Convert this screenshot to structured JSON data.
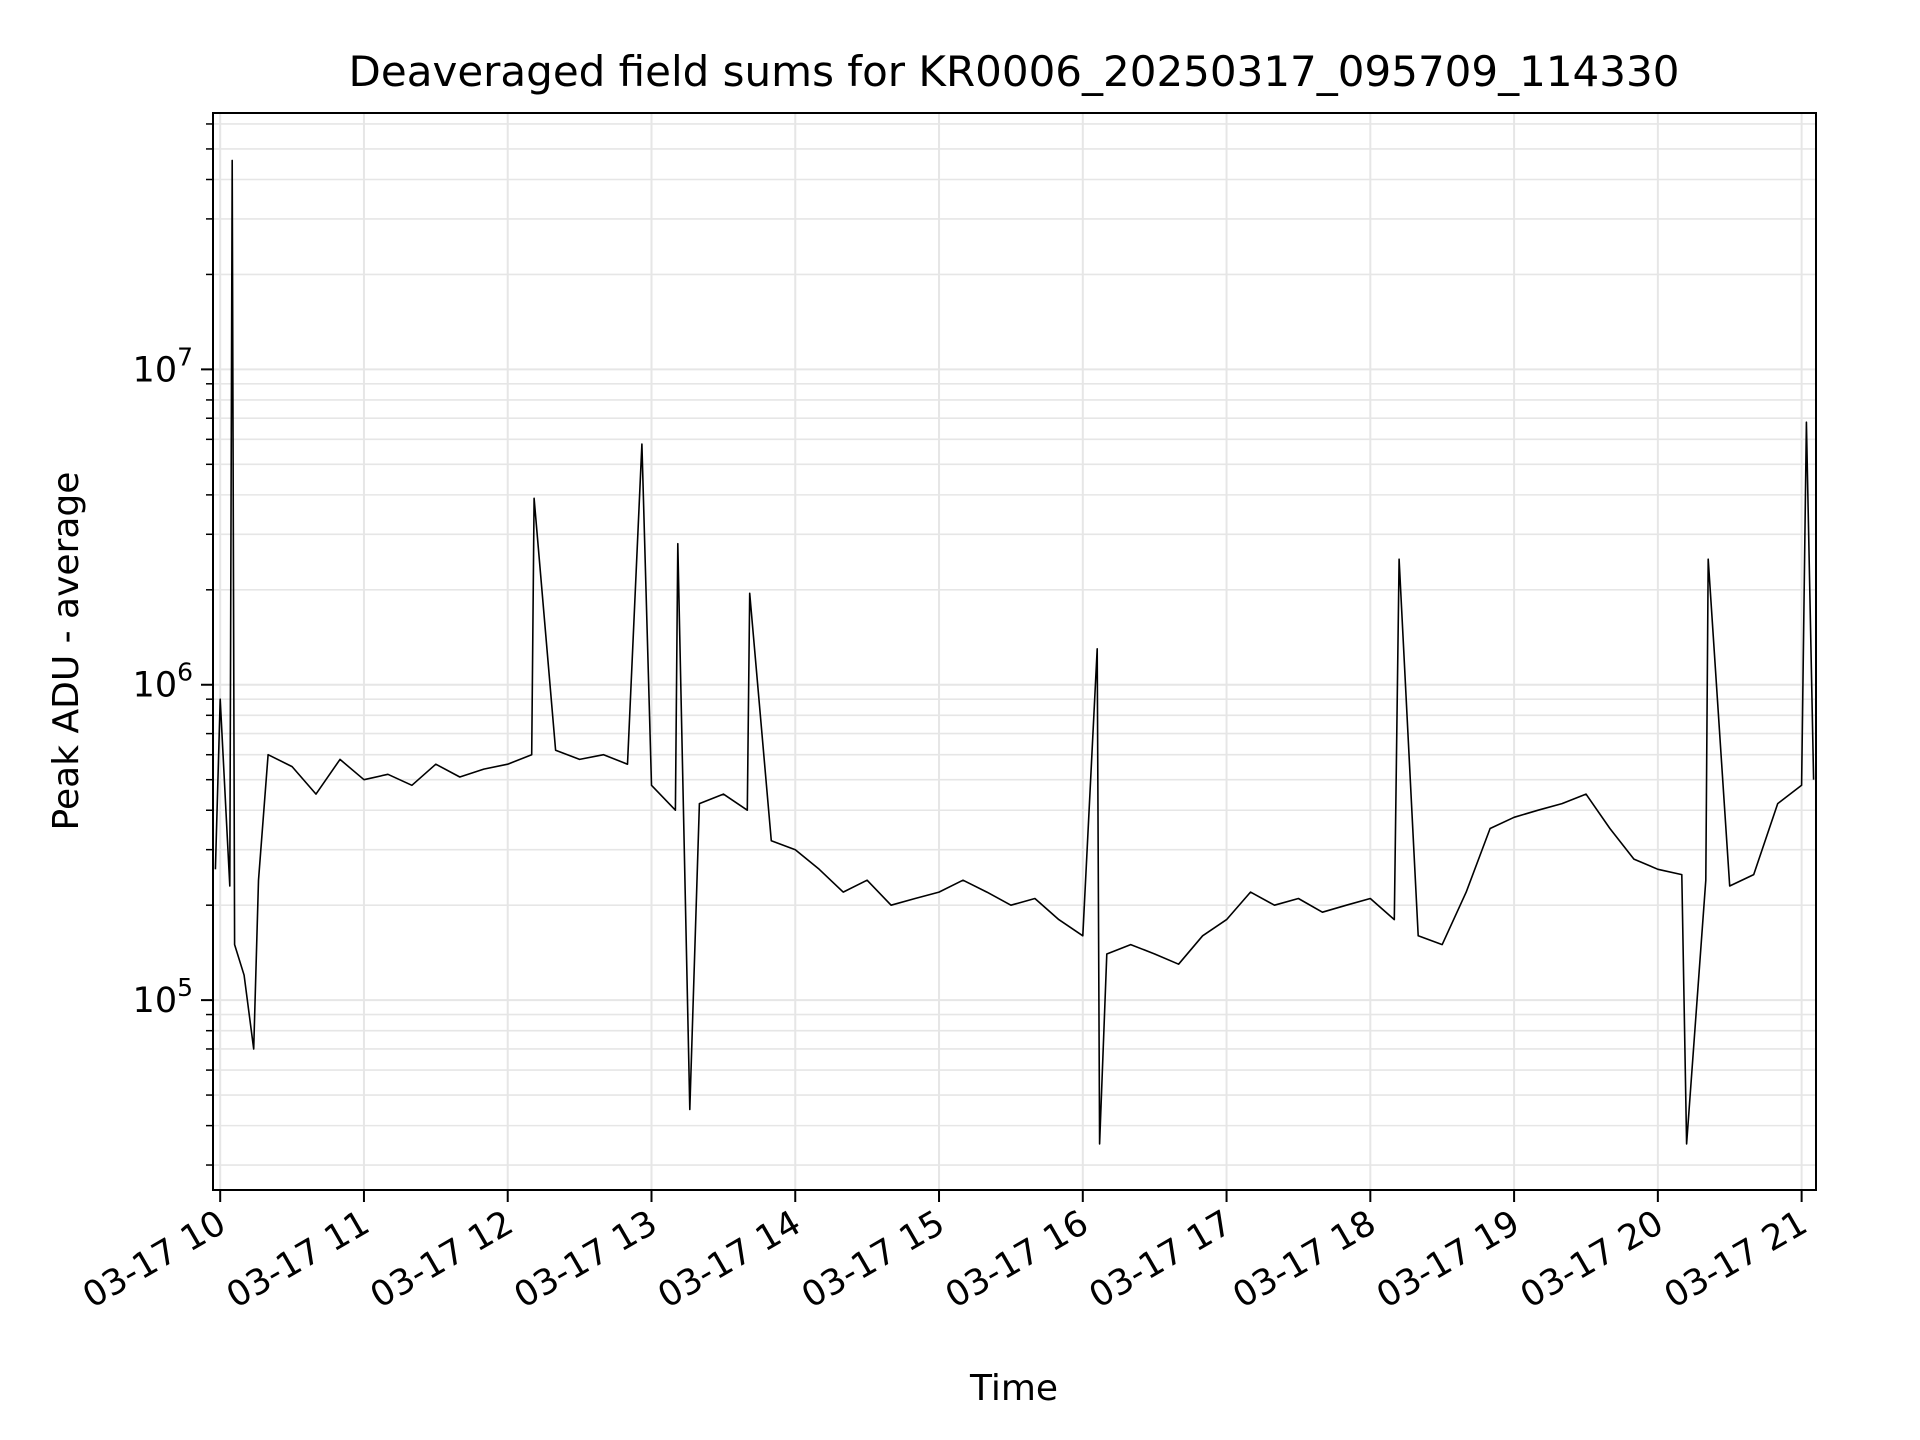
{
  "chart_data": {
    "type": "line",
    "title": "Deaveraged field sums for KR0006_20250317_095709_114330",
    "xlabel": "Time",
    "ylabel": "Peak ADU - average",
    "yscale": "log",
    "ylim": [
      25000,
      65000000
    ],
    "xlim": [
      "2025-03-17 09:57",
      "2025-03-17 21:06"
    ],
    "grid": true,
    "x_ticks": [
      "03-17 10",
      "03-17 11",
      "03-17 12",
      "03-17 13",
      "03-17 14",
      "03-17 15",
      "03-17 16",
      "03-17 17",
      "03-17 18",
      "03-17 19",
      "03-17 20",
      "03-17 21"
    ],
    "y_ticks": [
      {
        "base": "10",
        "exp": "5",
        "value": 100000
      },
      {
        "base": "10",
        "exp": "6",
        "value": 1000000
      },
      {
        "base": "10",
        "exp": "7",
        "value": 10000000
      }
    ],
    "series": [
      {
        "color": "#000000",
        "points": [
          [
            "2025-03-17 09:58",
            260000
          ],
          [
            "2025-03-17 10:00",
            900000
          ],
          [
            "2025-03-17 10:04",
            230000
          ],
          [
            "2025-03-17 10:05",
            46000000
          ],
          [
            "2025-03-17 10:06",
            150000
          ],
          [
            "2025-03-17 10:10",
            120000
          ],
          [
            "2025-03-17 10:14",
            70000
          ],
          [
            "2025-03-17 10:16",
            240000
          ],
          [
            "2025-03-17 10:20",
            600000
          ],
          [
            "2025-03-17 10:30",
            550000
          ],
          [
            "2025-03-17 10:40",
            450000
          ],
          [
            "2025-03-17 10:50",
            580000
          ],
          [
            "2025-03-17 11:00",
            500000
          ],
          [
            "2025-03-17 11:10",
            520000
          ],
          [
            "2025-03-17 11:20",
            480000
          ],
          [
            "2025-03-17 11:30",
            560000
          ],
          [
            "2025-03-17 11:40",
            510000
          ],
          [
            "2025-03-17 11:50",
            540000
          ],
          [
            "2025-03-17 12:00",
            560000
          ],
          [
            "2025-03-17 12:10",
            600000
          ],
          [
            "2025-03-17 12:11",
            3900000
          ],
          [
            "2025-03-17 12:20",
            620000
          ],
          [
            "2025-03-17 12:30",
            580000
          ],
          [
            "2025-03-17 12:40",
            600000
          ],
          [
            "2025-03-17 12:50",
            560000
          ],
          [
            "2025-03-17 12:56",
            5800000
          ],
          [
            "2025-03-17 13:00",
            480000
          ],
          [
            "2025-03-17 13:10",
            400000
          ],
          [
            "2025-03-17 13:11",
            2800000
          ],
          [
            "2025-03-17 13:16",
            45000
          ],
          [
            "2025-03-17 13:20",
            420000
          ],
          [
            "2025-03-17 13:30",
            450000
          ],
          [
            "2025-03-17 13:40",
            400000
          ],
          [
            "2025-03-17 13:41",
            1950000
          ],
          [
            "2025-03-17 13:50",
            320000
          ],
          [
            "2025-03-17 14:00",
            300000
          ],
          [
            "2025-03-17 14:10",
            260000
          ],
          [
            "2025-03-17 14:20",
            220000
          ],
          [
            "2025-03-17 14:30",
            240000
          ],
          [
            "2025-03-17 14:40",
            200000
          ],
          [
            "2025-03-17 14:50",
            210000
          ],
          [
            "2025-03-17 15:00",
            220000
          ],
          [
            "2025-03-17 15:10",
            240000
          ],
          [
            "2025-03-17 15:20",
            220000
          ],
          [
            "2025-03-17 15:30",
            200000
          ],
          [
            "2025-03-17 15:40",
            210000
          ],
          [
            "2025-03-17 15:50",
            180000
          ],
          [
            "2025-03-17 16:00",
            160000
          ],
          [
            "2025-03-17 16:06",
            1300000
          ],
          [
            "2025-03-17 16:07",
            35000
          ],
          [
            "2025-03-17 16:10",
            140000
          ],
          [
            "2025-03-17 16:20",
            150000
          ],
          [
            "2025-03-17 16:30",
            140000
          ],
          [
            "2025-03-17 16:40",
            130000
          ],
          [
            "2025-03-17 16:50",
            160000
          ],
          [
            "2025-03-17 17:00",
            180000
          ],
          [
            "2025-03-17 17:10",
            220000
          ],
          [
            "2025-03-17 17:20",
            200000
          ],
          [
            "2025-03-17 17:30",
            210000
          ],
          [
            "2025-03-17 17:40",
            190000
          ],
          [
            "2025-03-17 17:50",
            200000
          ],
          [
            "2025-03-17 18:00",
            210000
          ],
          [
            "2025-03-17 18:10",
            180000
          ],
          [
            "2025-03-17 18:12",
            2500000
          ],
          [
            "2025-03-17 18:20",
            160000
          ],
          [
            "2025-03-17 18:30",
            150000
          ],
          [
            "2025-03-17 18:40",
            220000
          ],
          [
            "2025-03-17 18:50",
            350000
          ],
          [
            "2025-03-17 19:00",
            380000
          ],
          [
            "2025-03-17 19:10",
            400000
          ],
          [
            "2025-03-17 19:20",
            420000
          ],
          [
            "2025-03-17 19:30",
            450000
          ],
          [
            "2025-03-17 19:40",
            350000
          ],
          [
            "2025-03-17 19:50",
            280000
          ],
          [
            "2025-03-17 20:00",
            260000
          ],
          [
            "2025-03-17 20:10",
            250000
          ],
          [
            "2025-03-17 20:12",
            35000
          ],
          [
            "2025-03-17 20:20",
            240000
          ],
          [
            "2025-03-17 20:21",
            2500000
          ],
          [
            "2025-03-17 20:30",
            230000
          ],
          [
            "2025-03-17 20:40",
            250000
          ],
          [
            "2025-03-17 20:50",
            420000
          ],
          [
            "2025-03-17 21:00",
            480000
          ],
          [
            "2025-03-17 21:02",
            6800000
          ],
          [
            "2025-03-17 21:05",
            500000
          ]
        ]
      }
    ]
  }
}
